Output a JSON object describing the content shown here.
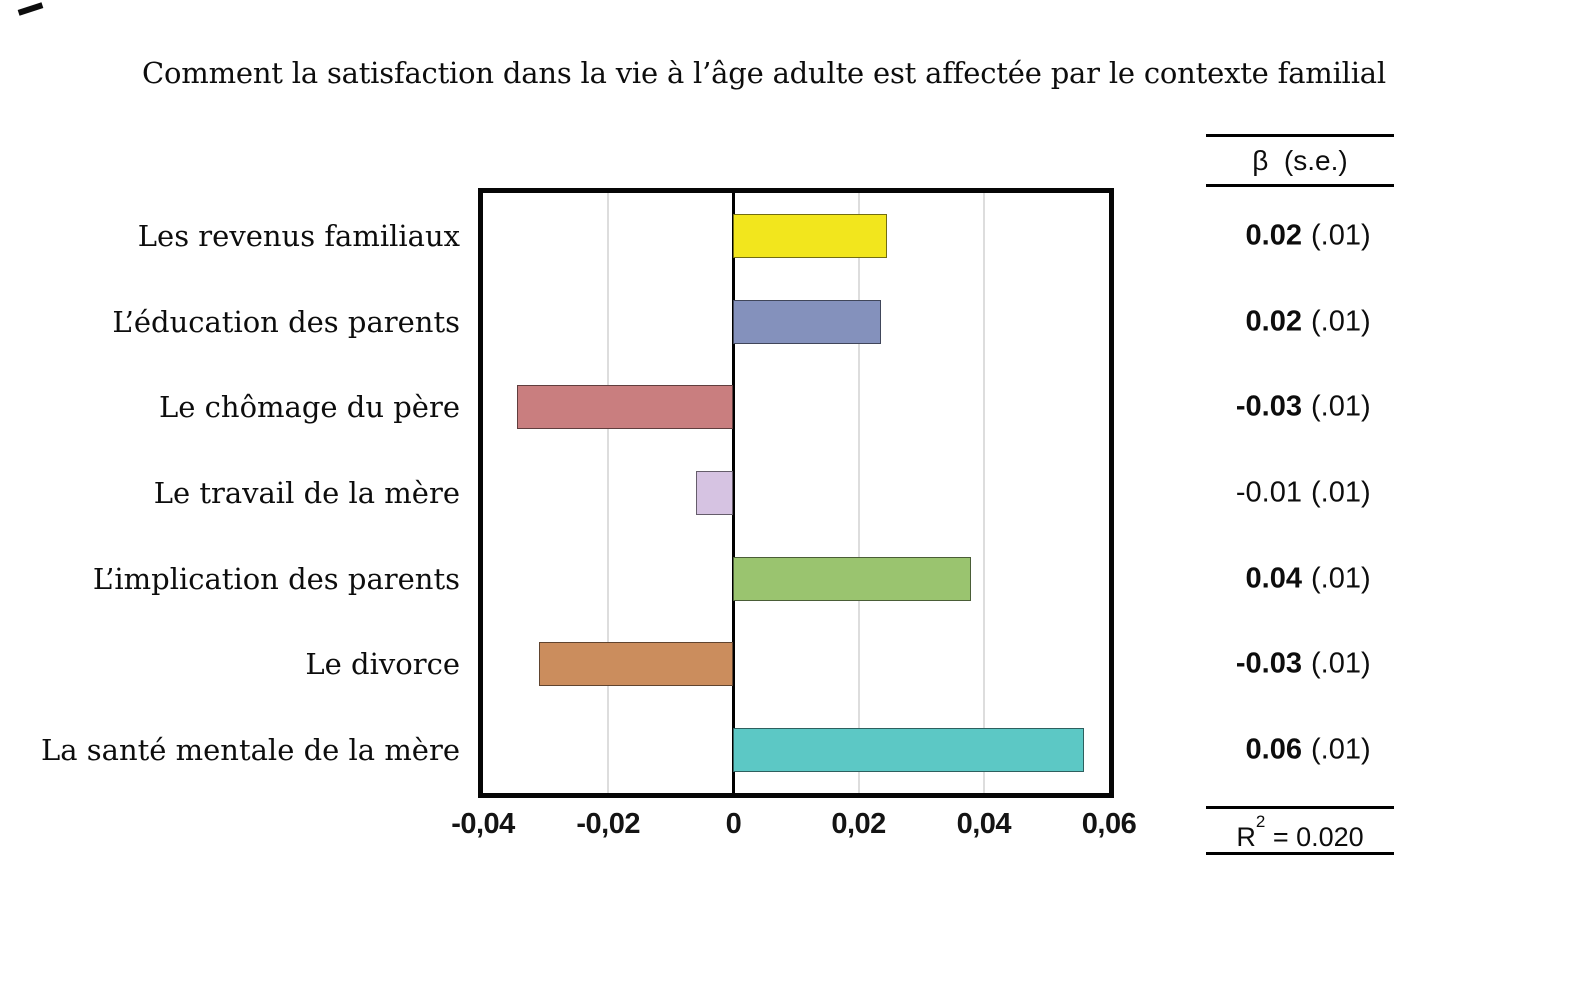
{
  "title": "Comment la satisfaction dans la vie à l’âge adulte est affectée par le contexte familial",
  "table": {
    "header": "β  (s.e.)",
    "rows": [
      {
        "beta": "0.02",
        "se": "(.01)",
        "bold": true
      },
      {
        "beta": "0.02",
        "se": "(.01)",
        "bold": true
      },
      {
        "beta": "-0.03",
        "se": "(.01)",
        "bold": true
      },
      {
        "beta": "-0.01",
        "se": "(.01)",
        "bold": false
      },
      {
        "beta": "0.04",
        "se": "(.01)",
        "bold": true
      },
      {
        "beta": "-0.03",
        "se": "(.01)",
        "bold": true
      },
      {
        "beta": "0.06",
        "se": "(.01)",
        "bold": true
      }
    ],
    "r2_prefix": "R",
    "r2_sup": "2",
    "r2_rest": " = 0.020"
  },
  "chart_data": {
    "type": "bar",
    "orientation": "horizontal",
    "title": "Comment la satisfaction dans la vie à l’âge adulte est affectée par le contexte familial",
    "categories": [
      "Les revenus familiaux",
      "L’éducation des parents",
      "Le chômage du père",
      "Le travail de la mère",
      "L’implication des parents",
      "Le divorce",
      "La santé mentale de la mère"
    ],
    "values": [
      0.02,
      0.02,
      -0.03,
      -0.01,
      0.04,
      -0.03,
      0.06
    ],
    "standard_errors": [
      0.01,
      0.01,
      0.01,
      0.01,
      0.01,
      0.01,
      0.01
    ],
    "bar_lengths_estimated": [
      0.0245,
      0.0235,
      -0.0345,
      -0.006,
      0.038,
      -0.031,
      0.056
    ],
    "bar_colors": [
      "#F2E61D",
      "#8491BC",
      "#C97E7F",
      "#D6C3E2",
      "#9AC46F",
      "#CB8D5D",
      "#5CC8C5"
    ],
    "xlim": [
      -0.04,
      0.06
    ],
    "xticks_values": [
      -0.04,
      -0.02,
      0,
      0.02,
      0.04,
      0.06
    ],
    "xticks_labels": [
      "-0,04",
      "-0,02",
      "0",
      "0,02",
      "0,04",
      "0,06"
    ],
    "grid": true,
    "gridline_color": "#dddddd",
    "legend": "none",
    "r_squared": "0.020"
  }
}
